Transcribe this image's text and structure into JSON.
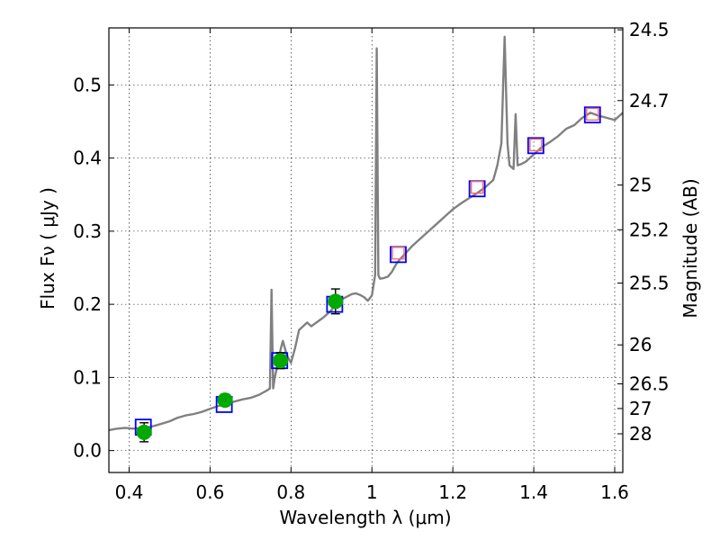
{
  "chart_data": {
    "type": "scatter",
    "title": "",
    "xlabel": "Wavelength  λ (μm)",
    "ylabel": "Flux  Fν  ( μJy )",
    "ylabel_right": "Magnitude (AB)",
    "xlim": [
      0.35,
      1.62
    ],
    "ylim": [
      -0.03,
      0.578
    ],
    "grid": true,
    "x_ticks": [
      0.4,
      0.6,
      0.8,
      1.0,
      1.2,
      1.4,
      1.6
    ],
    "x_tick_labels": [
      "0.4",
      "0.6",
      "0.8",
      "1",
      "1.2",
      "1.4",
      "1.6"
    ],
    "y_ticks": [
      0.0,
      0.1,
      0.2,
      0.3,
      0.4,
      0.5
    ],
    "y_tick_labels": [
      "0.0",
      "0.1",
      "0.2",
      "0.3",
      "0.4",
      "0.5"
    ],
    "right_ticks": [
      {
        "flux": 0.5754,
        "label": "24.5"
      },
      {
        "flux": 0.4786,
        "label": "24.7"
      },
      {
        "flux": 0.3631,
        "label": "25"
      },
      {
        "flux": 0.302,
        "label": "25.2"
      },
      {
        "flux": 0.2291,
        "label": "25.5"
      },
      {
        "flux": 0.1445,
        "label": "26"
      },
      {
        "flux": 0.0912,
        "label": "26.5"
      },
      {
        "flux": 0.0575,
        "label": "27"
      },
      {
        "flux": 0.0229,
        "label": "28"
      }
    ],
    "series": [
      {
        "style": "line",
        "color": "#808080",
        "points": [
          [
            0.35,
            0.028
          ],
          [
            0.37,
            0.03
          ],
          [
            0.39,
            0.031
          ],
          [
            0.41,
            0.03
          ],
          [
            0.43,
            0.031
          ],
          [
            0.45,
            0.032
          ],
          [
            0.47,
            0.035
          ],
          [
            0.5,
            0.04
          ],
          [
            0.52,
            0.045
          ],
          [
            0.54,
            0.048
          ],
          [
            0.56,
            0.05
          ],
          [
            0.58,
            0.053
          ],
          [
            0.6,
            0.057
          ],
          [
            0.62,
            0.061
          ],
          [
            0.64,
            0.064
          ],
          [
            0.66,
            0.067
          ],
          [
            0.68,
            0.07
          ],
          [
            0.7,
            0.072
          ],
          [
            0.72,
            0.076
          ],
          [
            0.74,
            0.082
          ],
          [
            0.748,
            0.085
          ],
          [
            0.752,
            0.22
          ],
          [
            0.756,
            0.085
          ],
          [
            0.76,
            0.1
          ],
          [
            0.768,
            0.12
          ],
          [
            0.775,
            0.14
          ],
          [
            0.78,
            0.15
          ],
          [
            0.79,
            0.13
          ],
          [
            0.8,
            0.12
          ],
          [
            0.81,
            0.14
          ],
          [
            0.82,
            0.165
          ],
          [
            0.83,
            0.17
          ],
          [
            0.84,
            0.175
          ],
          [
            0.85,
            0.17
          ],
          [
            0.86,
            0.174
          ],
          [
            0.87,
            0.178
          ],
          [
            0.88,
            0.182
          ],
          [
            0.89,
            0.187
          ],
          [
            0.9,
            0.192
          ],
          [
            0.91,
            0.2
          ],
          [
            0.92,
            0.205
          ],
          [
            0.93,
            0.208
          ],
          [
            0.94,
            0.211
          ],
          [
            0.95,
            0.214
          ],
          [
            0.96,
            0.215
          ],
          [
            0.97,
            0.213
          ],
          [
            0.98,
            0.21
          ],
          [
            0.99,
            0.205
          ],
          [
            1.0,
            0.212
          ],
          [
            1.008,
            0.24
          ],
          [
            1.012,
            0.55
          ],
          [
            1.016,
            0.24
          ],
          [
            1.02,
            0.235
          ],
          [
            1.03,
            0.236
          ],
          [
            1.04,
            0.238
          ],
          [
            1.05,
            0.245
          ],
          [
            1.06,
            0.255
          ],
          [
            1.07,
            0.262
          ],
          [
            1.08,
            0.268
          ],
          [
            1.1,
            0.28
          ],
          [
            1.12,
            0.29
          ],
          [
            1.14,
            0.3
          ],
          [
            1.16,
            0.31
          ],
          [
            1.18,
            0.32
          ],
          [
            1.2,
            0.33
          ],
          [
            1.22,
            0.338
          ],
          [
            1.24,
            0.345
          ],
          [
            1.26,
            0.352
          ],
          [
            1.28,
            0.36
          ],
          [
            1.3,
            0.37
          ],
          [
            1.31,
            0.39
          ],
          [
            1.32,
            0.42
          ],
          [
            1.328,
            0.566
          ],
          [
            1.335,
            0.42
          ],
          [
            1.34,
            0.39
          ],
          [
            1.35,
            0.385
          ],
          [
            1.355,
            0.46
          ],
          [
            1.36,
            0.39
          ],
          [
            1.37,
            0.392
          ],
          [
            1.38,
            0.395
          ],
          [
            1.4,
            0.405
          ],
          [
            1.42,
            0.415
          ],
          [
            1.44,
            0.422
          ],
          [
            1.46,
            0.43
          ],
          [
            1.48,
            0.44
          ],
          [
            1.5,
            0.445
          ],
          [
            1.52,
            0.455
          ],
          [
            1.54,
            0.462
          ],
          [
            1.56,
            0.458
          ],
          [
            1.58,
            0.455
          ],
          [
            1.6,
            0.452
          ],
          [
            1.62,
            0.462
          ]
        ]
      },
      {
        "style": "open-square",
        "color": "#0000ff",
        "points": [
          [
            0.435,
            0.032
          ],
          [
            0.635,
            0.063
          ],
          [
            0.772,
            0.123
          ],
          [
            0.908,
            0.2
          ],
          [
            1.065,
            0.268
          ],
          [
            1.26,
            0.358
          ],
          [
            1.405,
            0.417
          ],
          [
            1.545,
            0.459
          ]
        ]
      },
      {
        "style": "open-square",
        "color": "#ff6666",
        "points": [
          [
            1.065,
            0.27
          ],
          [
            1.26,
            0.36
          ],
          [
            1.405,
            0.418
          ],
          [
            1.545,
            0.46
          ]
        ]
      },
      {
        "style": "filled-circle-errorbar",
        "color": "#00aa00",
        "points": [
          {
            "x": 0.437,
            "y": 0.025,
            "err": 0.013
          },
          {
            "x": 0.637,
            "y": 0.069,
            "err": 0.008
          },
          {
            "x": 0.774,
            "y": 0.123,
            "err": 0.011
          },
          {
            "x": 0.91,
            "y": 0.204,
            "err": 0.017
          }
        ]
      }
    ]
  }
}
